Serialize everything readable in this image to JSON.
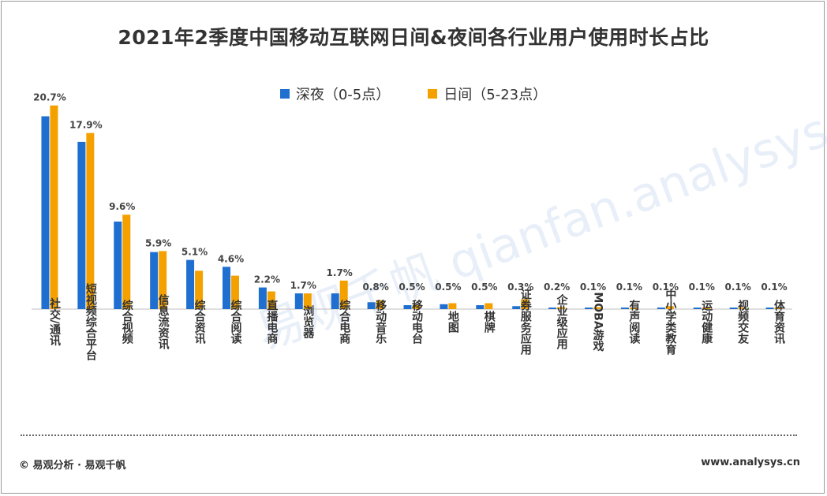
{
  "chart_data": {
    "type": "bar",
    "title": "2021年2季度中国移动互联网日间&夜间各行业用户使用时长占比",
    "categories": [
      "社交/通讯",
      "短视频综合平台",
      "综合视频",
      "信息流资讯",
      "综合资讯",
      "综合阅读",
      "直播电商",
      "浏览器",
      "综合电商",
      "移动音乐",
      "移动电台",
      "地图",
      "棋牌",
      "证券服务应用",
      "企业级应用",
      "MOBA游戏",
      "有声阅读",
      "中小学类教育",
      "运动健康",
      "视频交友",
      "体育资讯"
    ],
    "series": [
      {
        "name": "深夜（0-5点）",
        "color": "#1f6fd0",
        "values": [
          19.6,
          17.0,
          8.9,
          5.8,
          5.0,
          4.3,
          2.2,
          1.6,
          1.6,
          0.7,
          0.4,
          0.5,
          0.4,
          0.3,
          0.1,
          0.1,
          0.1,
          0.1,
          0.1,
          0.1,
          0.1
        ]
      },
      {
        "name": "日间（5-23点）",
        "color": "#f4a100",
        "values": [
          20.7,
          17.9,
          9.6,
          5.9,
          3.9,
          3.4,
          1.8,
          1.6,
          2.9,
          0.9,
          0.4,
          0.6,
          0.6,
          1.0,
          0.2,
          0.2,
          0.1,
          0.3,
          0.1,
          0.1,
          0.1
        ]
      }
    ],
    "data_labels": [
      "20.7%",
      "17.9%",
      "9.6%",
      "5.9%",
      "5.1%",
      "4.6%",
      "2.2%",
      "1.7%",
      "1.7%",
      "0.8%",
      "0.5%",
      "0.5%",
      "0.5%",
      "0.3%",
      "0.2%",
      "0.1%",
      "0.1%",
      "0.1%",
      "0.1%",
      "0.1%",
      "0.1%"
    ],
    "ylim": [
      0,
      21
    ],
    "xlabel": "",
    "ylabel": "",
    "legend": "top-center"
  },
  "watermark": "易观千帆 qianfan.analysys.cn",
  "footer": {
    "left": "© 易观分析 · 易观千帆",
    "right": "www.analysys.cn"
  }
}
